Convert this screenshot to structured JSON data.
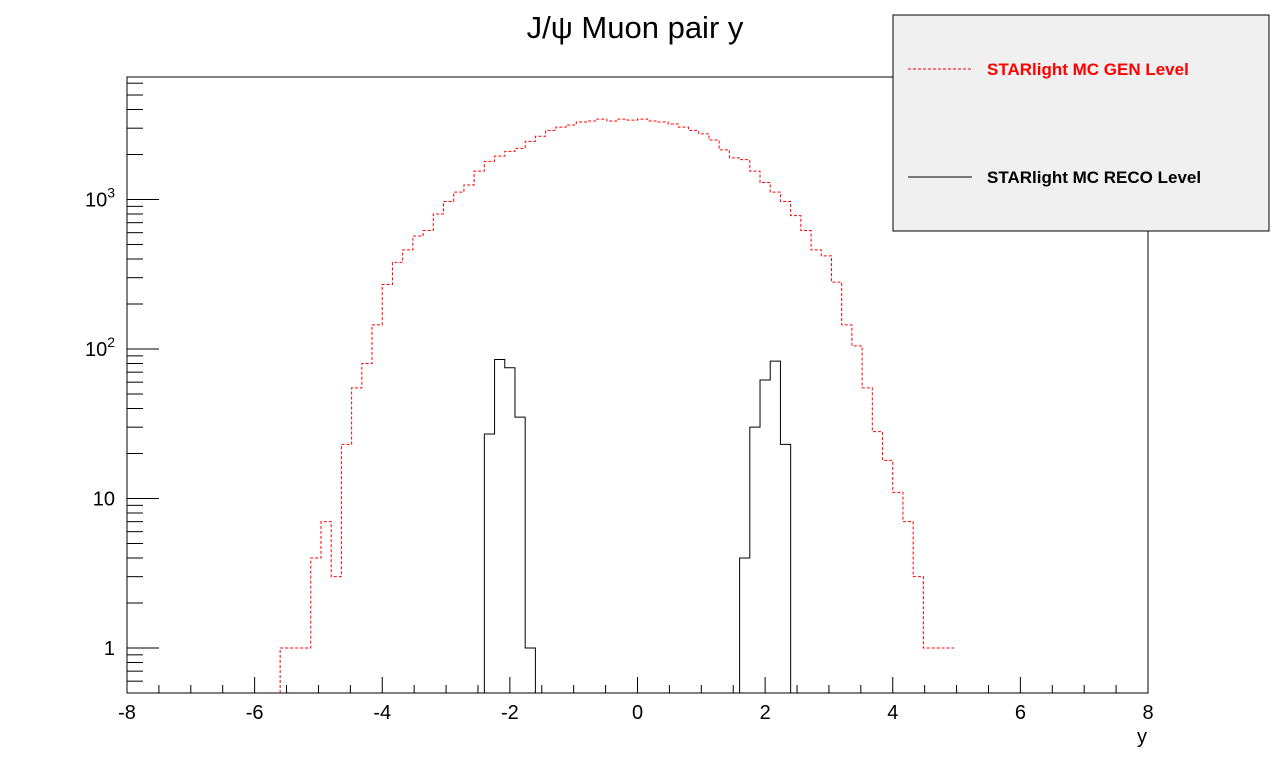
{
  "chart_data": {
    "type": "histogram",
    "title": "J/ψ Muon pair y",
    "xlabel": "y",
    "ylabel": "",
    "x_scale": "linear",
    "y_scale": "log",
    "xlim": [
      -8,
      8
    ],
    "ylim": [
      0.5,
      6600
    ],
    "x_ticks": [
      "-8",
      "-6",
      "-4",
      "-2",
      "0",
      "2",
      "4",
      "6",
      "8"
    ],
    "y_ticks": [
      {
        "value": 1,
        "base": "1",
        "exp": ""
      },
      {
        "value": 10,
        "base": "10",
        "exp": ""
      },
      {
        "value": 100,
        "base": "10",
        "exp": "2"
      },
      {
        "value": 1000,
        "base": "10",
        "exp": "3"
      }
    ],
    "bin_width": 0.16,
    "grid": false,
    "legend_position": "top-right",
    "series": [
      {
        "name": "STARlight MC GEN Level",
        "color": "#ff0000",
        "line_style": "dotted",
        "bin_low_edges": [
          -5.6,
          -5.44,
          -5.28,
          -5.12,
          -4.96,
          -4.8,
          -4.64,
          -4.48,
          -4.32,
          -4.16,
          -4.0,
          -3.84,
          -3.68,
          -3.52,
          -3.36,
          -3.2,
          -3.04,
          -2.88,
          -2.72,
          -2.56,
          -2.4,
          -2.24,
          -2.08,
          -1.92,
          -1.76,
          -1.6,
          -1.44,
          -1.28,
          -1.12,
          -0.96,
          -0.8,
          -0.64,
          -0.48,
          -0.32,
          -0.16,
          0.0,
          0.16,
          0.32,
          0.48,
          0.64,
          0.8,
          0.96,
          1.12,
          1.28,
          1.44,
          1.6,
          1.76,
          1.92,
          2.08,
          2.24,
          2.4,
          2.56,
          2.72,
          2.88,
          3.04,
          3.2,
          3.36,
          3.52,
          3.68,
          3.84,
          4.0,
          4.16,
          4.32,
          4.48,
          4.64,
          4.8,
          4.96,
          5.12,
          5.28,
          5.44
        ],
        "values": [
          1,
          1,
          1,
          4,
          7,
          3,
          23,
          55,
          80,
          145,
          270,
          380,
          460,
          570,
          620,
          800,
          970,
          1120,
          1250,
          1550,
          1800,
          1950,
          2100,
          2200,
          2450,
          2650,
          2900,
          3050,
          3150,
          3300,
          3350,
          3450,
          3350,
          3450,
          3400,
          3450,
          3350,
          3300,
          3200,
          3050,
          2900,
          2750,
          2500,
          2150,
          1900,
          1850,
          1550,
          1300,
          1120,
          970,
          780,
          620,
          460,
          420,
          280,
          145,
          105,
          55,
          28,
          18,
          11,
          7,
          3,
          1,
          1,
          1
        ],
        "bin_start": -5.6
      },
      {
        "name": "STARlight MC RECO Level",
        "color": "#000000",
        "line_style": "solid",
        "bin_low_edges": [
          -2.4,
          -2.24,
          -2.08,
          -1.92,
          -1.76,
          1.6,
          1.76,
          1.92,
          2.08,
          2.24
        ],
        "values": [
          27,
          85,
          75,
          35,
          1,
          4,
          30,
          62,
          83,
          23
        ]
      }
    ]
  }
}
